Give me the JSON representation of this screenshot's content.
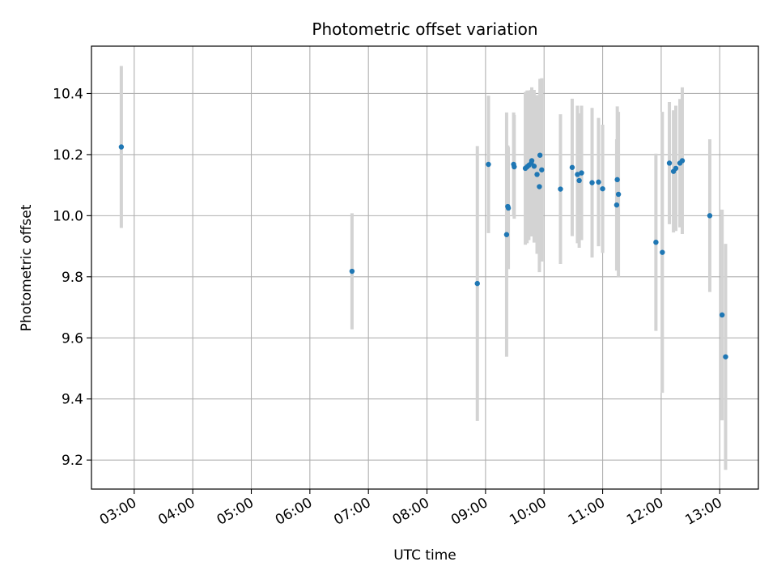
{
  "chart_data": {
    "type": "scatter",
    "title": "Photometric offset variation",
    "xlabel": "UTC time",
    "ylabel": "Photometric offset",
    "xlim_hours": [
      2.27,
      13.66
    ],
    "ylim": [
      9.105,
      10.555
    ],
    "grid": true,
    "x_ticks": [
      {
        "hour": 3,
        "label": "03:00"
      },
      {
        "hour": 4,
        "label": "04:00"
      },
      {
        "hour": 5,
        "label": "05:00"
      },
      {
        "hour": 6,
        "label": "06:00"
      },
      {
        "hour": 7,
        "label": "07:00"
      },
      {
        "hour": 8,
        "label": "08:00"
      },
      {
        "hour": 9,
        "label": "09:00"
      },
      {
        "hour": 10,
        "label": "10:00"
      },
      {
        "hour": 11,
        "label": "11:00"
      },
      {
        "hour": 12,
        "label": "12:00"
      },
      {
        "hour": 13,
        "label": "13:00"
      }
    ],
    "y_ticks": [
      {
        "value": 9.2,
        "label": "9.2"
      },
      {
        "value": 9.4,
        "label": "9.4"
      },
      {
        "value": 9.6,
        "label": "9.6"
      },
      {
        "value": 9.8,
        "label": "9.8"
      },
      {
        "value": 10.0,
        "label": "10.0"
      },
      {
        "value": 10.2,
        "label": "10.2"
      },
      {
        "value": 10.4,
        "label": "10.4"
      }
    ],
    "colors": {
      "point": "#1f77b4",
      "errorbar": "#d3d3d3",
      "grid": "#b0b0b0",
      "axes": "#000000"
    },
    "points": [
      {
        "hour": 2.78,
        "y": 10.225,
        "err": 0.265
      },
      {
        "hour": 6.72,
        "y": 9.818,
        "err": 0.19
      },
      {
        "hour": 8.86,
        "y": 9.778,
        "err": 0.45
      },
      {
        "hour": 9.05,
        "y": 10.168,
        "err": 0.225
      },
      {
        "hour": 9.36,
        "y": 9.938,
        "err": 0.4
      },
      {
        "hour": 9.38,
        "y": 10.03,
        "err": 0.2
      },
      {
        "hour": 9.39,
        "y": 10.025,
        "err": 0.2
      },
      {
        "hour": 9.48,
        "y": 10.168,
        "err": 0.17
      },
      {
        "hour": 9.49,
        "y": 10.16,
        "err": 0.17
      },
      {
        "hour": 9.68,
        "y": 10.155,
        "err": 0.25
      },
      {
        "hour": 9.71,
        "y": 10.16,
        "err": 0.25
      },
      {
        "hour": 9.74,
        "y": 10.165,
        "err": 0.245
      },
      {
        "hour": 9.78,
        "y": 10.172,
        "err": 0.24
      },
      {
        "hour": 9.79,
        "y": 10.18,
        "err": 0.24
      },
      {
        "hour": 9.83,
        "y": 10.162,
        "err": 0.25
      },
      {
        "hour": 9.88,
        "y": 10.135,
        "err": 0.26
      },
      {
        "hour": 9.92,
        "y": 10.095,
        "err": 0.28
      },
      {
        "hour": 9.93,
        "y": 10.198,
        "err": 0.25
      },
      {
        "hour": 9.96,
        "y": 10.15,
        "err": 0.3
      },
      {
        "hour": 10.28,
        "y": 10.087,
        "err": 0.245
      },
      {
        "hour": 10.48,
        "y": 10.158,
        "err": 0.225
      },
      {
        "hour": 10.57,
        "y": 10.135,
        "err": 0.225
      },
      {
        "hour": 10.6,
        "y": 10.115,
        "err": 0.22
      },
      {
        "hour": 10.64,
        "y": 10.14,
        "err": 0.22
      },
      {
        "hour": 10.82,
        "y": 10.108,
        "err": 0.245
      },
      {
        "hour": 10.93,
        "y": 10.11,
        "err": 0.21
      },
      {
        "hour": 11.0,
        "y": 10.088,
        "err": 0.21
      },
      {
        "hour": 11.24,
        "y": 10.035,
        "err": 0.215
      },
      {
        "hour": 11.25,
        "y": 10.118,
        "err": 0.24
      },
      {
        "hour": 11.27,
        "y": 10.07,
        "err": 0.27
      },
      {
        "hour": 11.91,
        "y": 9.913,
        "err": 0.29
      },
      {
        "hour": 12.02,
        "y": 9.88,
        "err": 0.46
      },
      {
        "hour": 12.14,
        "y": 10.172,
        "err": 0.2
      },
      {
        "hour": 12.21,
        "y": 10.145,
        "err": 0.2
      },
      {
        "hour": 12.25,
        "y": 10.155,
        "err": 0.205
      },
      {
        "hour": 12.32,
        "y": 10.172,
        "err": 0.21
      },
      {
        "hour": 12.36,
        "y": 10.18,
        "err": 0.24
      },
      {
        "hour": 12.83,
        "y": 10.0,
        "err": 0.25
      },
      {
        "hour": 13.04,
        "y": 9.675,
        "err": 0.345
      },
      {
        "hour": 13.1,
        "y": 9.538,
        "err": 0.37
      }
    ]
  }
}
